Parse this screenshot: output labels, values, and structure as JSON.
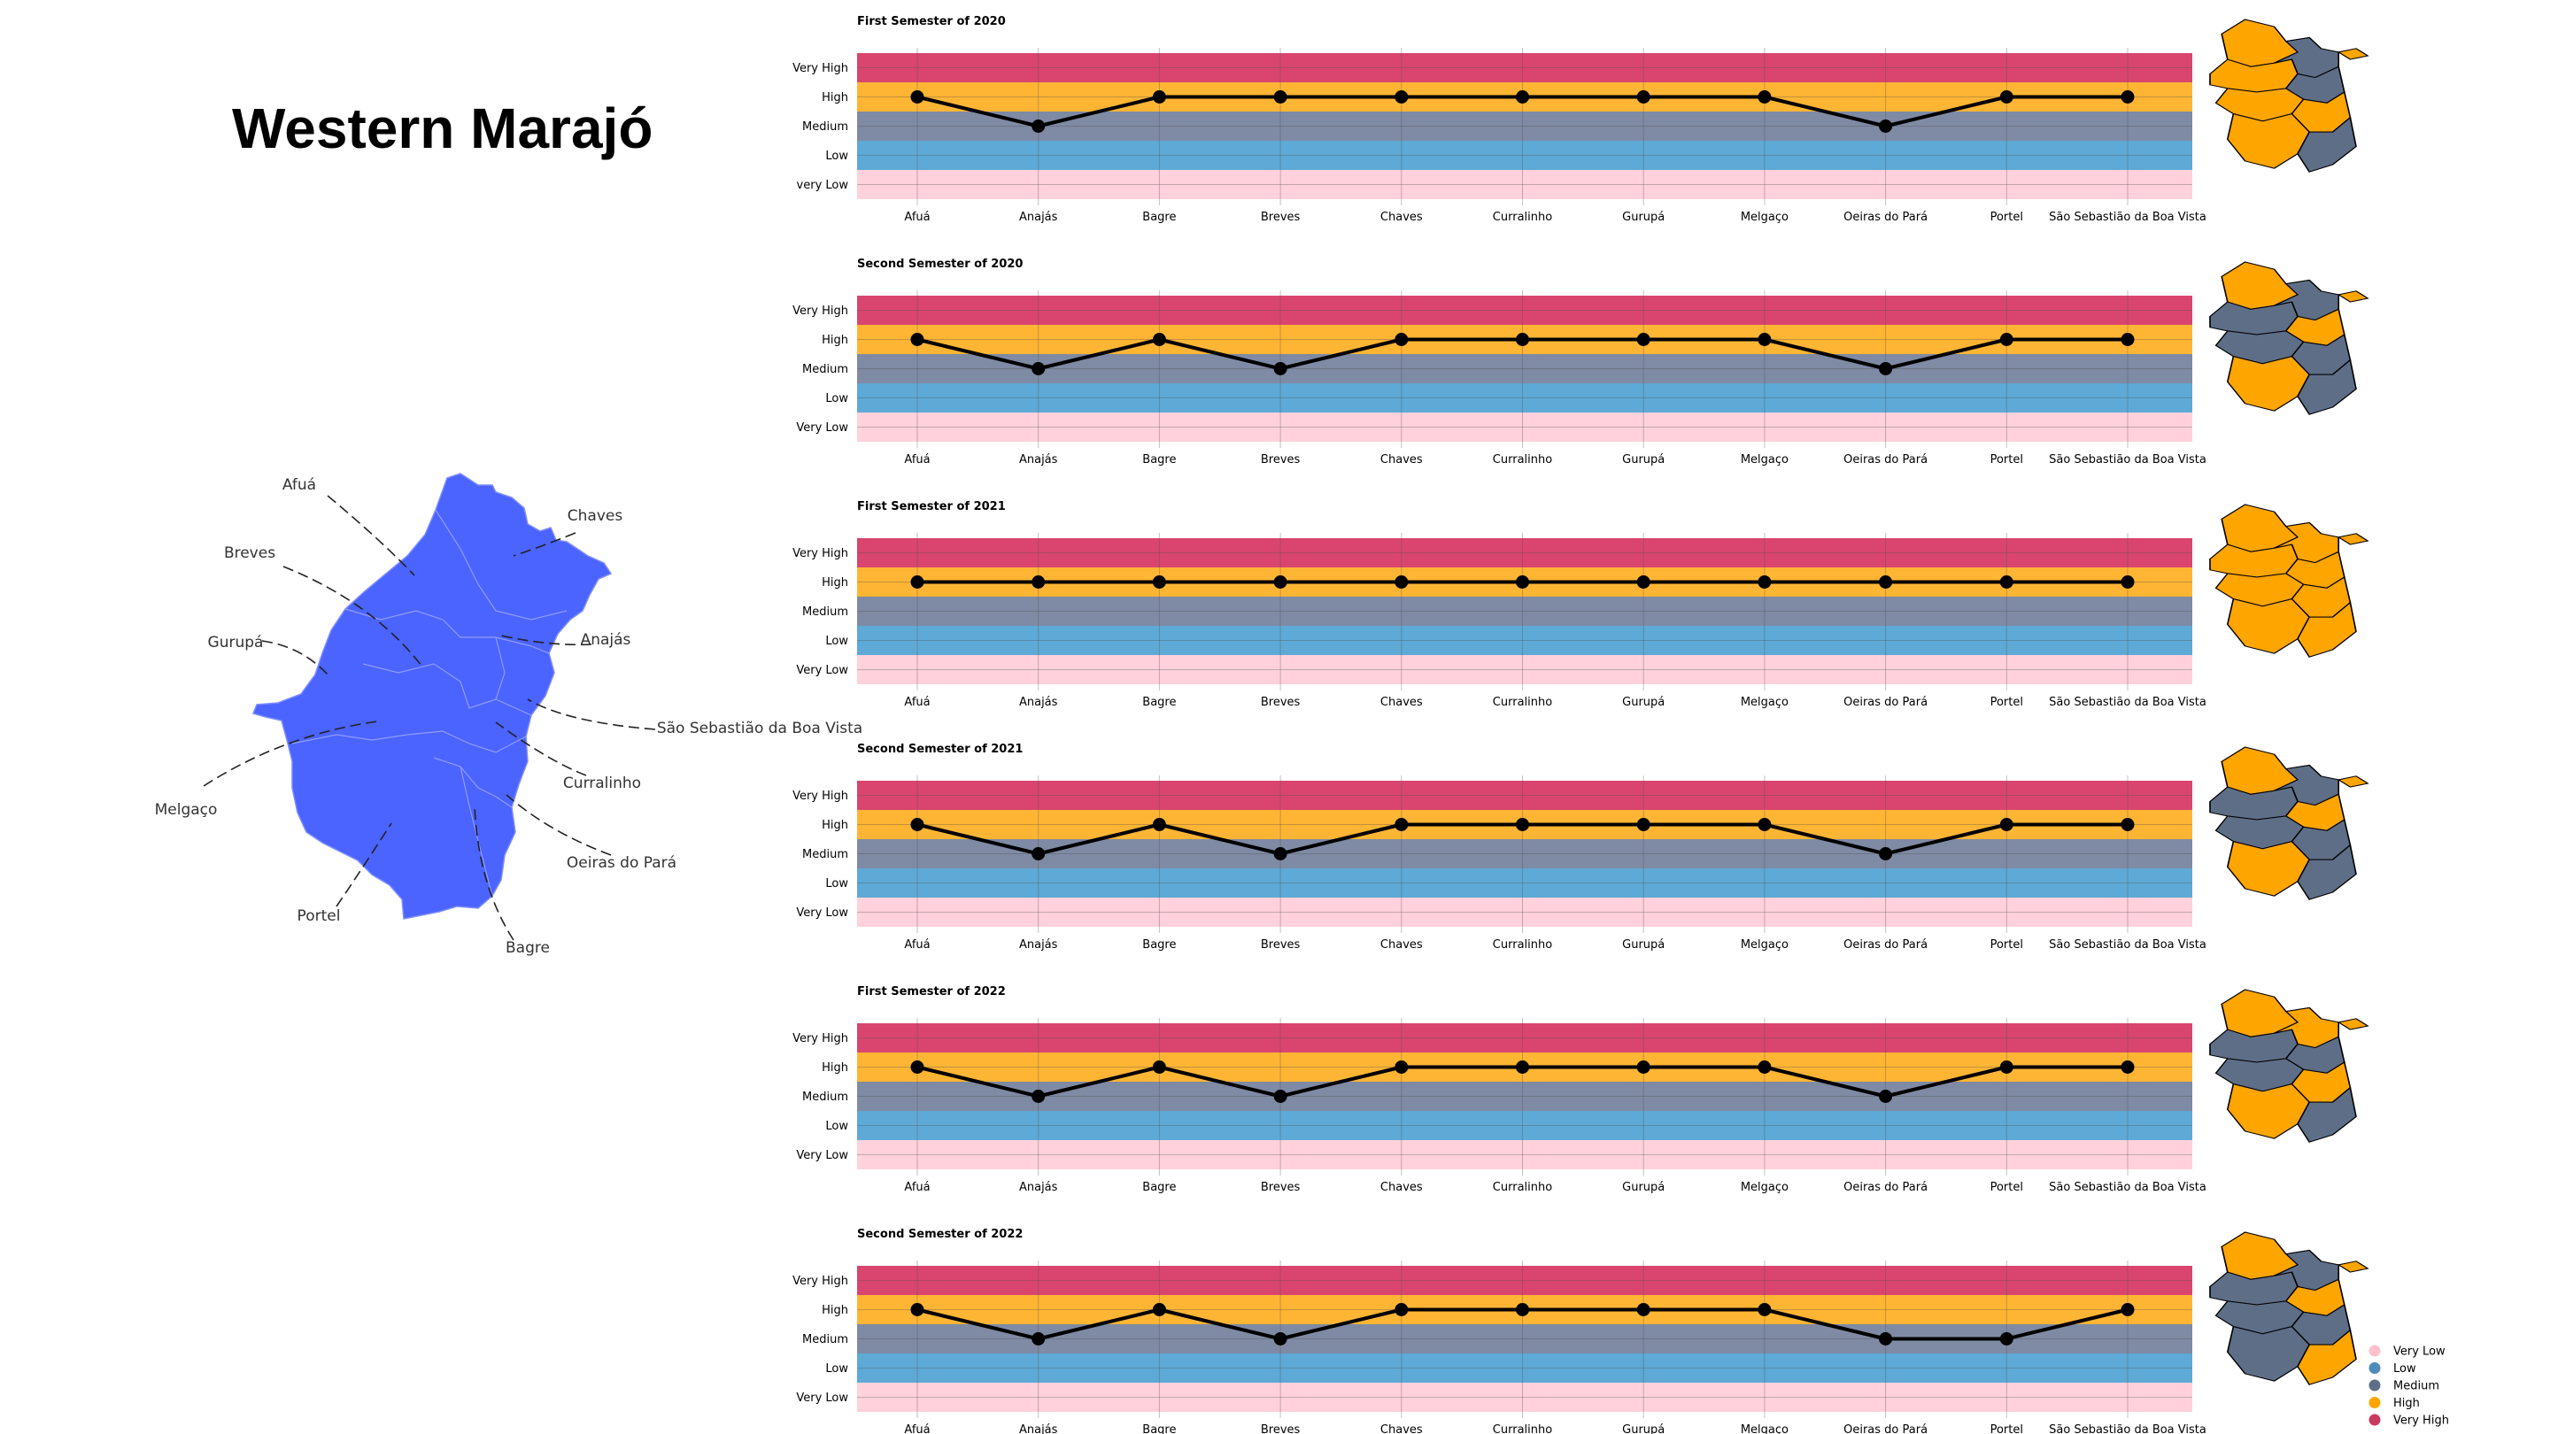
{
  "title": "Western Marajó",
  "colors": {
    "very_low": "#ffd1dc",
    "low": "#5ea9d6",
    "medium": "#7f8aa4",
    "high": "#ffb534",
    "very_high": "#d9456f",
    "map_blue": "#4b63ff",
    "map_high": "#ffa500",
    "map_medium": "#5e6e87",
    "legend_very_low": "#ffc0cb",
    "legend_low": "#4f8db8",
    "legend_medium": "#5e6e87",
    "legend_high": "#ffa500",
    "legend_very_high": "#c83a5e"
  },
  "overview_map": {
    "labels": [
      "Afuá",
      "Chaves",
      "Breves",
      "Anajás",
      "Gurupá",
      "São Sebastião da Boa Vista",
      "Curralinho",
      "Melgaço",
      "Oeiras do Pará",
      "Portel",
      "Bagre"
    ]
  },
  "legend": {
    "items": [
      "Very Low",
      "Low",
      "Medium",
      "High",
      "Very High"
    ]
  },
  "chart_data": [
    {
      "type": "line",
      "title": "First Semester of 2020",
      "categories": [
        "Afuá",
        "Anajás",
        "Bagre",
        "Breves",
        "Chaves",
        "Curralinho",
        "Gurupá",
        "Melgaço",
        "Oeiras do Pará",
        "Portel",
        "São Sebastião da Boa Vista"
      ],
      "y_levels": [
        "very Low",
        "Low",
        "Medium",
        "High",
        "Very High"
      ],
      "values": [
        "High",
        "Medium",
        "High",
        "High",
        "High",
        "High",
        "High",
        "High",
        "Medium",
        "High",
        "High"
      ],
      "grid": true
    },
    {
      "type": "line",
      "title": "Second Semester of 2020",
      "categories": [
        "Afuá",
        "Anajás",
        "Bagre",
        "Breves",
        "Chaves",
        "Curralinho",
        "Gurupá",
        "Melgaço",
        "Oeiras do Pará",
        "Portel",
        "São Sebastião da Boa Vista"
      ],
      "y_levels": [
        "Very Low",
        "Low",
        "Medium",
        "High",
        "Very High"
      ],
      "values": [
        "High",
        "Medium",
        "High",
        "Medium",
        "High",
        "High",
        "High",
        "High",
        "Medium",
        "High",
        "High"
      ],
      "grid": true
    },
    {
      "type": "line",
      "title": "First Semester of 2021",
      "categories": [
        "Afuá",
        "Anajás",
        "Bagre",
        "Breves",
        "Chaves",
        "Curralinho",
        "Gurupá",
        "Melgaço",
        "Oeiras do Pará",
        "Portel",
        "São Sebastião da Boa Vista"
      ],
      "y_levels": [
        "Very Low",
        "Low",
        "Medium",
        "High",
        "Very High"
      ],
      "values": [
        "High",
        "High",
        "High",
        "High",
        "High",
        "High",
        "High",
        "High",
        "High",
        "High",
        "High"
      ],
      "grid": true
    },
    {
      "type": "line",
      "title": "Second Semester of 2021",
      "categories": [
        "Afuá",
        "Anajás",
        "Bagre",
        "Breves",
        "Chaves",
        "Curralinho",
        "Gurupá",
        "Melgaço",
        "Oeiras do Pará",
        "Portel",
        "São Sebastião da Boa Vista"
      ],
      "y_levels": [
        "Very Low",
        "Low",
        "Medium",
        "High",
        "Very High"
      ],
      "values": [
        "High",
        "Medium",
        "High",
        "Medium",
        "High",
        "High",
        "High",
        "High",
        "Medium",
        "High",
        "High"
      ],
      "grid": true
    },
    {
      "type": "line",
      "title": "First Semester of 2022",
      "categories": [
        "Afuá",
        "Anajás",
        "Bagre",
        "Breves",
        "Chaves",
        "Curralinho",
        "Gurupá",
        "Melgaço",
        "Oeiras do Pará",
        "Portel",
        "São Sebastião da Boa Vista"
      ],
      "y_levels": [
        "Very Low",
        "Low",
        "Medium",
        "High",
        "Very High"
      ],
      "values": [
        "High",
        "Medium",
        "High",
        "Medium",
        "High",
        "High",
        "High",
        "High",
        "Medium",
        "High",
        "High"
      ],
      "grid": true
    },
    {
      "type": "line",
      "title": "Second Semester of 2022",
      "categories": [
        "Afuá",
        "Anajás",
        "Bagre",
        "Breves",
        "Chaves",
        "Curralinho",
        "Gurupá",
        "Melgaço",
        "Oeiras do Pará",
        "Portel",
        "São Sebastião da Boa Vista"
      ],
      "y_levels": [
        "Very Low",
        "Low",
        "Medium",
        "High",
        "Very High"
      ],
      "values": [
        "High",
        "Medium",
        "High",
        "Medium",
        "High",
        "High",
        "High",
        "High",
        "Medium",
        "Medium",
        "High"
      ],
      "grid": true
    }
  ]
}
